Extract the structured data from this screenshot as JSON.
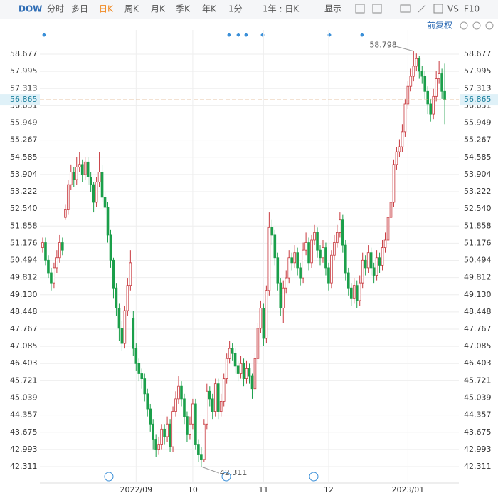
{
  "toolbar": {
    "symbol": "DOW",
    "tabs": [
      "分时",
      "多日",
      "日K",
      "周K",
      "月K",
      "季K",
      "年K",
      "1分"
    ],
    "active": "日K",
    "range": "1年 : 日K",
    "display": "显示",
    "vs": "VS",
    "f10": "F10",
    "adjust": "前复权"
  },
  "chart_data": {
    "type": "candlestick",
    "up_color": "#c83a3f",
    "down_color": "#1b9f4a",
    "open": [
      51.0,
      51.2,
      50.5,
      50.0,
      49.6,
      50.2,
      50.6,
      51.2,
      52.2,
      52.5,
      53.5,
      54.0,
      53.7,
      54.2,
      54.3,
      53.9,
      54.4,
      53.8,
      53.5,
      52.8,
      53.6,
      54.0,
      53.0,
      52.6,
      51.5,
      50.5,
      49.4,
      48.6,
      47.8,
      47.2,
      48.5,
      49.5,
      48.2,
      47.0,
      46.4,
      46.0,
      45.8,
      45.2,
      44.6,
      44.0,
      43.4,
      43.0,
      43.2,
      43.8,
      43.5,
      44.0,
      43.1,
      44.5,
      45.0,
      45.5,
      45.0,
      44.3,
      43.6,
      44.0,
      44.8,
      43.2,
      42.8,
      42.6,
      44.0,
      45.3,
      45.0,
      44.5,
      45.6,
      44.5,
      44.9,
      45.8,
      46.6,
      47.0,
      46.8,
      46.3,
      46.0,
      46.4,
      45.8,
      46.2,
      45.9,
      45.4,
      46.6,
      47.8,
      48.6,
      47.4,
      49.3,
      51.8,
      51.5,
      50.6,
      49.6,
      48.6,
      49.4,
      49.8,
      50.6,
      50.4,
      50.8,
      50.2,
      49.8,
      50.9,
      51.2,
      50.4,
      51.3,
      51.6,
      50.9,
      50.6,
      51.0,
      50.2,
      49.6,
      50.7,
      51.2,
      51.6,
      52.1,
      51.1,
      50.0,
      49.4,
      49.0,
      49.5,
      48.9,
      49.6,
      50.5,
      50.2,
      50.8,
      50.2,
      49.9,
      50.6,
      50.3,
      51.0,
      51.3,
      52.2,
      52.8,
      54.3,
      54.8,
      55.0,
      55.6,
      56.7,
      57.4,
      57.8,
      58.2,
      58.5,
      58.0,
      57.8,
      57.2,
      56.7,
      56.3,
      57.0,
      57.7,
      57.9,
      57.2
    ],
    "high": [
      51.4,
      51.4,
      50.7,
      50.2,
      50.4,
      50.9,
      51.5,
      51.4,
      52.7,
      53.7,
      54.3,
      54.2,
      54.6,
      54.8,
      54.5,
      54.6,
      54.6,
      54.0,
      53.6,
      53.8,
      54.8,
      54.3,
      53.2,
      52.8,
      51.7,
      50.6,
      49.6,
      48.8,
      48.1,
      48.7,
      49.8,
      50.9,
      48.5,
      47.2,
      46.6,
      46.2,
      46.0,
      45.4,
      44.8,
      44.2,
      43.6,
      43.5,
      44.0,
      44.0,
      44.3,
      44.2,
      44.7,
      45.3,
      45.9,
      45.7,
      45.2,
      44.5,
      44.3,
      45.0,
      45.0,
      43.4,
      43.1,
      44.2,
      45.6,
      45.5,
      45.2,
      45.8,
      45.8,
      45.2,
      46.0,
      46.8,
      47.3,
      47.2,
      47.0,
      46.5,
      46.7,
      46.6,
      46.5,
      46.4,
      46.0,
      46.8,
      48.0,
      48.9,
      48.8,
      49.5,
      52.4,
      52.1,
      51.7,
      50.8,
      49.8,
      49.7,
      50.1,
      50.9,
      50.8,
      51.1,
      51.0,
      50.4,
      51.2,
      51.6,
      51.4,
      51.5,
      51.9,
      51.8,
      51.1,
      51.3,
      51.2,
      50.4,
      50.9,
      51.5,
      51.9,
      52.4,
      52.3,
      51.3,
      50.2,
      49.6,
      49.8,
      49.7,
      49.9,
      50.8,
      50.7,
      51.1,
      51.0,
      50.4,
      50.9,
      50.8,
      51.3,
      51.6,
      52.5,
      53.0,
      54.5,
      55.0,
      55.3,
      55.9,
      56.9,
      57.6,
      58.1,
      58.798,
      58.7,
      58.6,
      58.2,
      58.0,
      57.4,
      56.9,
      57.3,
      58.0,
      58.4,
      58.1,
      58.3
    ],
    "low": [
      50.8,
      50.3,
      49.8,
      49.3,
      49.4,
      50.0,
      50.4,
      50.7,
      52.1,
      52.3,
      53.3,
      53.4,
      53.5,
      54.0,
      53.6,
      53.7,
      53.5,
      53.2,
      52.4,
      52.6,
      53.4,
      52.8,
      52.3,
      51.2,
      50.2,
      49.0,
      48.3,
      47.3,
      46.9,
      47.0,
      48.3,
      49.3,
      46.7,
      46.1,
      45.7,
      45.4,
      44.9,
      44.3,
      43.7,
      43.0,
      42.7,
      42.8,
      43.0,
      43.2,
      43.3,
      42.9,
      42.9,
      44.3,
      44.8,
      44.7,
      44.0,
      43.3,
      43.4,
      43.8,
      43.0,
      42.5,
      42.311,
      42.5,
      43.8,
      44.7,
      44.2,
      44.3,
      44.2,
      44.3,
      44.7,
      45.6,
      46.4,
      46.5,
      46.0,
      45.7,
      45.8,
      45.5,
      45.6,
      45.6,
      45.0,
      45.2,
      46.4,
      47.6,
      47.1,
      47.2,
      49.1,
      51.1,
      50.3,
      49.3,
      48.3,
      48.0,
      49.2,
      49.6,
      50.1,
      50.2,
      49.9,
      49.5,
      49.6,
      50.7,
      50.1,
      50.2,
      51.1,
      50.6,
      50.3,
      50.4,
      49.9,
      49.3,
      49.4,
      50.5,
      51.0,
      51.4,
      50.8,
      49.7,
      49.1,
      48.7,
      48.8,
      48.6,
      48.7,
      49.4,
      49.9,
      50.0,
      49.9,
      49.6,
      49.7,
      50.0,
      50.1,
      50.8,
      51.1,
      52.0,
      52.6,
      54.1,
      54.6,
      54.8,
      55.4,
      56.5,
      57.2,
      57.6,
      58.0,
      57.7,
      57.5,
      56.9,
      56.3,
      56.0,
      56.1,
      56.8,
      57.5,
      56.9,
      55.9
    ],
    "close": [
      51.2,
      50.5,
      50.0,
      49.6,
      50.2,
      50.6,
      51.2,
      50.9,
      52.5,
      53.5,
      54.0,
      53.7,
      54.2,
      54.3,
      53.9,
      54.4,
      53.8,
      53.5,
      52.8,
      53.6,
      54.0,
      53.0,
      52.6,
      51.5,
      50.5,
      49.4,
      48.6,
      47.8,
      47.2,
      48.5,
      49.5,
      50.4,
      47.0,
      46.4,
      46.0,
      45.8,
      45.2,
      44.6,
      44.0,
      43.4,
      43.0,
      43.2,
      43.8,
      43.5,
      44.0,
      43.1,
      44.5,
      45.0,
      45.5,
      45.0,
      44.3,
      43.6,
      44.0,
      44.8,
      43.2,
      42.8,
      42.6,
      44.0,
      45.3,
      45.0,
      44.5,
      45.6,
      44.5,
      44.9,
      45.8,
      46.6,
      47.0,
      46.8,
      46.3,
      46.0,
      46.4,
      45.8,
      46.2,
      45.9,
      45.4,
      46.6,
      47.8,
      48.6,
      47.4,
      49.3,
      51.8,
      51.5,
      50.6,
      49.6,
      48.6,
      49.4,
      49.8,
      50.6,
      50.4,
      50.8,
      50.2,
      49.8,
      50.9,
      51.2,
      50.4,
      51.3,
      51.6,
      50.9,
      50.6,
      51.0,
      50.2,
      49.6,
      50.7,
      51.2,
      51.6,
      52.1,
      51.1,
      50.0,
      49.4,
      49.0,
      49.5,
      48.9,
      49.6,
      50.5,
      50.2,
      50.8,
      50.2,
      49.9,
      50.6,
      50.3,
      51.0,
      51.3,
      52.2,
      52.8,
      54.3,
      54.8,
      55.0,
      55.6,
      56.7,
      57.4,
      57.8,
      58.2,
      58.5,
      58.0,
      57.8,
      57.2,
      56.7,
      56.3,
      57.0,
      57.7,
      57.9,
      57.2,
      56.865
    ],
    "xlim": [
      -1,
      147
    ],
    "xticks": [
      {
        "value": 33,
        "label": "2022/09"
      },
      {
        "value": 53,
        "label": "10"
      },
      {
        "value": 78,
        "label": "11"
      },
      {
        "value": 101,
        "label": "12"
      },
      {
        "value": 129,
        "label": "2023/01"
      }
    ],
    "ylim": [
      41.944,
      59.073
    ],
    "yticks": [
      58.677,
      57.995,
      57.313,
      56.631,
      55.949,
      55.267,
      54.585,
      53.904,
      53.222,
      {
        "value": 52.54,
        "label": "52.540"
      },
      51.858,
      51.176,
      50.494,
      49.812,
      {
        "value": 49.13,
        "label": "49.130"
      },
      48.448,
      47.767,
      47.085,
      46.403,
      45.721,
      45.039,
      44.357,
      43.675,
      42.993,
      42.311
    ],
    "current_price": 56.865,
    "max_label": {
      "index": 131,
      "value": 58.798
    },
    "min_label": {
      "index": 56,
      "value": 42.311
    },
    "grid": true
  }
}
